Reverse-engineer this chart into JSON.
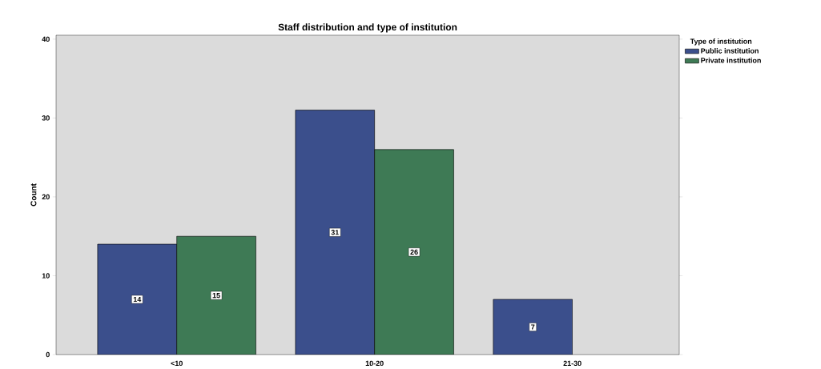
{
  "chart_data": {
    "type": "bar",
    "title": "Staff distribution and type of institution",
    "ylabel": "Count",
    "legend_title": "Type of institution",
    "categories": [
      "<10",
      "10-20",
      "21-30"
    ],
    "series": [
      {
        "name": "Public institution",
        "color": "#3b4f8c",
        "values": [
          14,
          31,
          7
        ]
      },
      {
        "name": "Private institution",
        "color": "#3e7a55",
        "values": [
          15,
          26,
          null
        ]
      }
    ],
    "ylim": [
      0,
      40.5
    ],
    "yticks": [
      0,
      10,
      20,
      30,
      40
    ],
    "grid": false,
    "legend": "top right",
    "data_labels": true
  }
}
